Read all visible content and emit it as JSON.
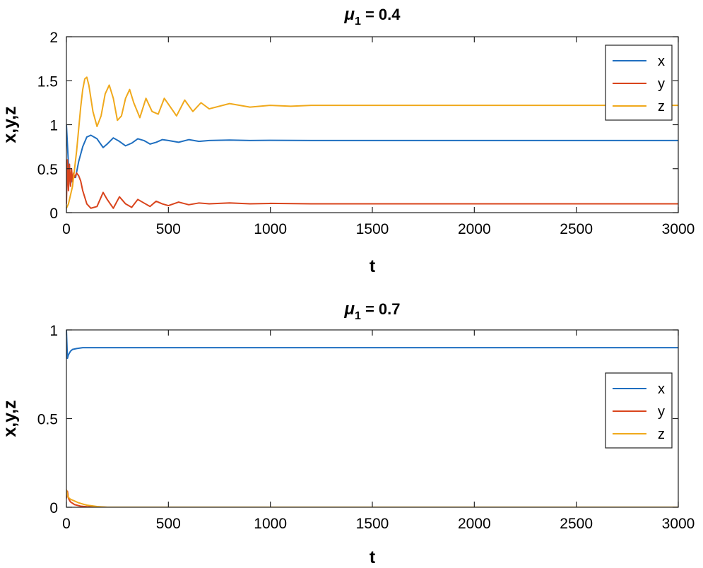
{
  "chart_data": [
    {
      "type": "line",
      "title": {
        "symbol": "μ",
        "subscript": "1",
        "text": " = 0.4"
      },
      "xlabel": "t",
      "ylabel": "x,y,z",
      "xlim": [
        0,
        3000
      ],
      "ylim": [
        0,
        2
      ],
      "xticks": [
        0,
        500,
        1000,
        1500,
        2000,
        2500,
        3000
      ],
      "xtick_labels": [
        "0",
        "500",
        "1000",
        "1500",
        "2000",
        "2500",
        "3000"
      ],
      "yticks": [
        0,
        0.5,
        1,
        1.5,
        2
      ],
      "ytick_labels": [
        "0",
        "0.5",
        "1",
        "1.5",
        "2"
      ],
      "legend_position": "top-right",
      "series": [
        {
          "name": "x",
          "color": "#1f6fc0",
          "x": [
            0,
            10,
            20,
            30,
            45,
            60,
            80,
            100,
            120,
            150,
            180,
            200,
            230,
            260,
            290,
            320,
            350,
            380,
            410,
            440,
            470,
            500,
            550,
            600,
            650,
            700,
            800,
            900,
            1000,
            1200,
            1500,
            2000,
            2500,
            3000
          ],
          "y": [
            1.0,
            0.55,
            0.32,
            0.42,
            0.4,
            0.58,
            0.75,
            0.86,
            0.88,
            0.84,
            0.74,
            0.78,
            0.85,
            0.81,
            0.76,
            0.79,
            0.84,
            0.82,
            0.78,
            0.8,
            0.83,
            0.82,
            0.8,
            0.83,
            0.81,
            0.82,
            0.825,
            0.82,
            0.822,
            0.82,
            0.82,
            0.82,
            0.82,
            0.82
          ]
        },
        {
          "name": "y",
          "color": "#d9441c",
          "x": [
            0,
            5,
            10,
            15,
            20,
            25,
            30,
            35,
            40,
            50,
            60,
            70,
            80,
            100,
            120,
            150,
            180,
            200,
            230,
            260,
            290,
            320,
            350,
            380,
            410,
            440,
            470,
            500,
            550,
            600,
            650,
            700,
            800,
            900,
            1000,
            1200,
            1500,
            2000,
            2500,
            3000
          ],
          "y": [
            0.1,
            0.6,
            0.25,
            0.55,
            0.3,
            0.5,
            0.35,
            0.45,
            0.4,
            0.45,
            0.42,
            0.36,
            0.25,
            0.1,
            0.05,
            0.07,
            0.23,
            0.15,
            0.05,
            0.18,
            0.1,
            0.06,
            0.15,
            0.11,
            0.07,
            0.13,
            0.1,
            0.08,
            0.12,
            0.09,
            0.11,
            0.1,
            0.11,
            0.1,
            0.105,
            0.1,
            0.1,
            0.1,
            0.1,
            0.1
          ]
        },
        {
          "name": "z",
          "color": "#f0a91c",
          "x": [
            0,
            10,
            20,
            30,
            40,
            50,
            60,
            70,
            80,
            90,
            100,
            110,
            120,
            130,
            150,
            170,
            190,
            210,
            230,
            250,
            270,
            290,
            310,
            330,
            360,
            390,
            420,
            450,
            480,
            510,
            540,
            580,
            620,
            660,
            700,
            800,
            900,
            1000,
            1100,
            1200,
            1500,
            2000,
            2500,
            3000
          ],
          "y": [
            0.05,
            0.1,
            0.2,
            0.3,
            0.5,
            0.7,
            0.95,
            1.2,
            1.4,
            1.52,
            1.54,
            1.45,
            1.3,
            1.15,
            0.98,
            1.1,
            1.35,
            1.45,
            1.3,
            1.05,
            1.1,
            1.3,
            1.4,
            1.25,
            1.08,
            1.3,
            1.15,
            1.12,
            1.3,
            1.2,
            1.1,
            1.28,
            1.15,
            1.25,
            1.18,
            1.24,
            1.2,
            1.22,
            1.21,
            1.22,
            1.22,
            1.22,
            1.22,
            1.22
          ]
        }
      ]
    },
    {
      "type": "line",
      "title": {
        "symbol": "μ",
        "subscript": "1",
        "text": " = 0.7"
      },
      "xlabel": "t",
      "ylabel": "x,y,z",
      "xlim": [
        0,
        3000
      ],
      "ylim": [
        0,
        1
      ],
      "xticks": [
        0,
        500,
        1000,
        1500,
        2000,
        2500,
        3000
      ],
      "xtick_labels": [
        "0",
        "500",
        "1000",
        "1500",
        "2000",
        "2500",
        "3000"
      ],
      "yticks": [
        0,
        0.5,
        1
      ],
      "ytick_labels": [
        "0",
        "0.5",
        "1"
      ],
      "legend_position": "middle-right",
      "series": [
        {
          "name": "x",
          "color": "#1f6fc0",
          "x": [
            0,
            5,
            10,
            20,
            30,
            50,
            80,
            120,
            200,
            500,
            1000,
            2000,
            3000
          ],
          "y": [
            1.0,
            0.84,
            0.86,
            0.88,
            0.89,
            0.895,
            0.9,
            0.9,
            0.9,
            0.9,
            0.9,
            0.9,
            0.9
          ]
        },
        {
          "name": "y",
          "color": "#d9441c",
          "x": [
            0,
            5,
            10,
            20,
            40,
            70,
            100,
            150,
            200,
            500,
            1000,
            2000,
            3000
          ],
          "y": [
            0.05,
            0.09,
            0.05,
            0.03,
            0.015,
            0.006,
            0.003,
            0.001,
            0.0,
            0.0,
            0.0,
            0.0,
            0.0
          ]
        },
        {
          "name": "z",
          "color": "#f0a91c",
          "x": [
            0,
            5,
            10,
            20,
            40,
            60,
            80,
            100,
            150,
            200,
            500,
            1000,
            2000,
            3000
          ],
          "y": [
            0.1,
            0.07,
            0.055,
            0.045,
            0.035,
            0.025,
            0.018,
            0.012,
            0.004,
            0.0,
            0.0,
            0.0,
            0.0,
            0.0
          ]
        }
      ]
    }
  ]
}
